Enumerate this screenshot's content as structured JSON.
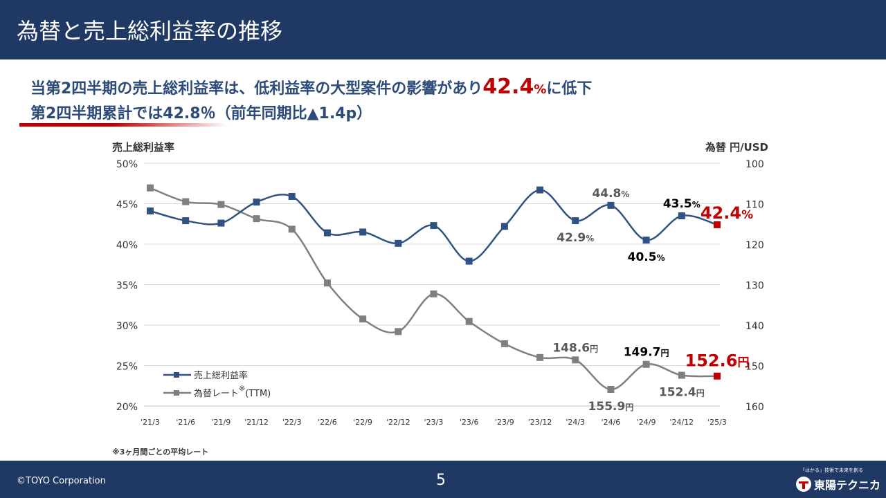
{
  "header": {
    "title": "為替と売上総利益率の推移"
  },
  "headline": {
    "line1_text": "当第2四半期の売上総利益率は、低利益率の大型案件の影響があり",
    "line1_value": "42.4",
    "line1_unit": "%",
    "line1_suffix": "に低下",
    "line2": "第2四半期累計では42.8％（前年同期比▲1.4p）"
  },
  "note": "※3ヶ月間ごとの平均レート",
  "footer": {
    "copyright": "©TOYO Corporation",
    "page_number": "5",
    "brand_tagline": "「はかる」技術で未来を創る",
    "brand_name": "東陽テクニカ"
  },
  "colors": {
    "navy": "#1f3864",
    "margin_line": "#2f5283",
    "fx_line": "#7f7f7f",
    "highlight": "#c00000",
    "grid": "#d9d9d9"
  },
  "chart_data": {
    "type": "line",
    "categories": [
      "'21/3",
      "'21/6",
      "'21/9",
      "'21/12",
      "'22/3",
      "'22/6",
      "'22/9",
      "'22/12",
      "'23/3",
      "'23/6",
      "'23/9",
      "'23/12",
      "'24/3",
      "'24/6",
      "'24/9",
      "'24/12",
      "'25/3"
    ],
    "left_axis": {
      "label": "売上総利益率",
      "min": 20,
      "max": 50,
      "ticks": [
        "20%",
        "25%",
        "30%",
        "35%",
        "40%",
        "45%",
        "50%"
      ]
    },
    "right_axis": {
      "label": "為替 円/USD",
      "min": 100,
      "max": 160,
      "reversed": true,
      "ticks": [
        "100",
        "110",
        "120",
        "130",
        "140",
        "150",
        "160"
      ]
    },
    "grid": true,
    "legend_position": "bottom-left",
    "series": [
      {
        "name": "売上総利益率",
        "axis": "left",
        "color": "#2f5283",
        "values": [
          44.1,
          42.9,
          42.6,
          45.2,
          45.9,
          41.4,
          41.5,
          40.1,
          42.3,
          37.9,
          42.2,
          46.7,
          42.9,
          44.8,
          40.5,
          43.5,
          42.4
        ]
      },
      {
        "name": "為替レート",
        "name_sup": "※",
        "name_suffix": "(TTM)",
        "axis": "right",
        "color": "#7f7f7f",
        "values": [
          106.1,
          109.5,
          110.2,
          113.7,
          116.3,
          129.6,
          138.5,
          141.6,
          132.3,
          139.1,
          144.6,
          148.0,
          148.6,
          155.9,
          149.7,
          152.4,
          152.6
        ]
      }
    ],
    "annotations": [
      {
        "series": 0,
        "index": 13,
        "value": "44.8",
        "unit": "%",
        "style": "gray",
        "position": "above"
      },
      {
        "series": 0,
        "index": 12,
        "value": "42.9",
        "unit": "%",
        "style": "gray",
        "position": "below"
      },
      {
        "series": 0,
        "index": 15,
        "value": "43.5",
        "unit": "%",
        "style": "black",
        "position": "above"
      },
      {
        "series": 0,
        "index": 14,
        "value": "40.5",
        "unit": "%",
        "style": "black",
        "position": "below"
      },
      {
        "series": 0,
        "index": 16,
        "value": "42.4",
        "unit": "%",
        "style": "red",
        "position": "above-right"
      },
      {
        "series": 1,
        "index": 12,
        "value": "148.6",
        "unit": "円",
        "style": "gray",
        "position": "above"
      },
      {
        "series": 1,
        "index": 13,
        "value": "155.9",
        "unit": "円",
        "style": "gray",
        "position": "below"
      },
      {
        "series": 1,
        "index": 14,
        "value": "149.7",
        "unit": "円",
        "style": "black",
        "position": "above"
      },
      {
        "series": 1,
        "index": 15,
        "value": "152.4",
        "unit": "円",
        "style": "gray",
        "position": "below"
      },
      {
        "series": 1,
        "index": 16,
        "value": "152.6",
        "unit": "円",
        "style": "red",
        "position": "above"
      }
    ]
  }
}
